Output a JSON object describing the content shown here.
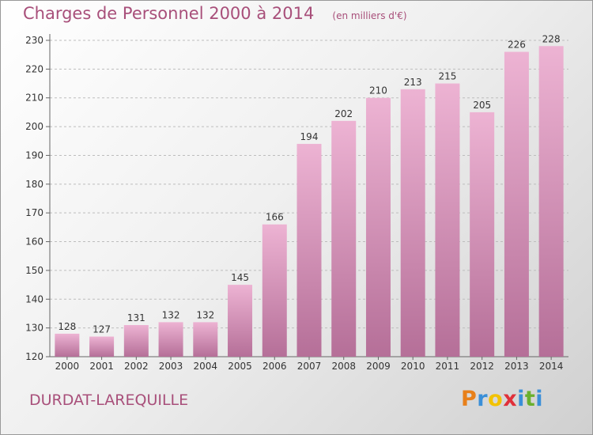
{
  "header": {
    "title": "Charges de Personnel 2000 à 2014",
    "subtitle": "(en milliers d'€)"
  },
  "footer": {
    "city": "DURDAT-LAREQUILLE",
    "logo": {
      "letters": [
        "P",
        "r",
        "o",
        "x",
        "i",
        "t",
        "i"
      ],
      "colors": [
        "#e8801a",
        "#3a8fd8",
        "#f2c200",
        "#e0303a",
        "#3a8fd8",
        "#6ab02e",
        "#3a8fd8"
      ]
    }
  },
  "colors": {
    "bar_light": "#edb3d3",
    "bar_dark": "#b56f98",
    "title": "#a84f7a"
  },
  "chart_data": {
    "type": "bar",
    "categories": [
      "2000",
      "2001",
      "2002",
      "2003",
      "2004",
      "2005",
      "2006",
      "2007",
      "2008",
      "2009",
      "2010",
      "2011",
      "2012",
      "2013",
      "2014"
    ],
    "values": [
      128,
      127,
      131,
      132,
      132,
      145,
      166,
      194,
      202,
      210,
      213,
      215,
      205,
      226,
      228
    ],
    "ylim": [
      120,
      230
    ],
    "yticks": [
      120,
      130,
      140,
      150,
      160,
      170,
      180,
      190,
      200,
      210,
      220,
      230
    ],
    "grid": true,
    "data_labels": true
  }
}
